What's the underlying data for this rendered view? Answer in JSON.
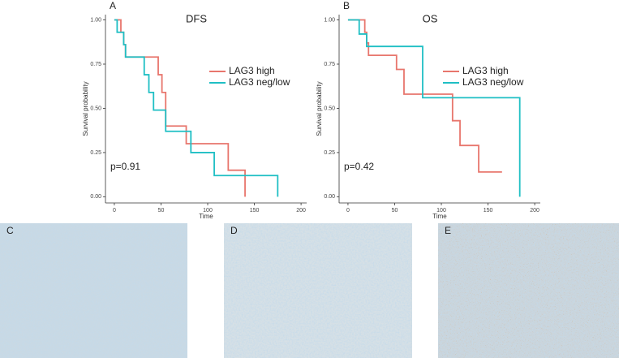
{
  "chart_data": [
    {
      "type": "step",
      "panel": "A",
      "title": "DFS",
      "x_label": "Time",
      "y_label": "Survival probability",
      "annotation": "p=0.91",
      "xlim": [
        -9.5,
        206
      ],
      "ylim": [
        -0.035,
        1.03
      ],
      "xticks": [
        0,
        50,
        100,
        150,
        200
      ],
      "yticks": [
        {
          "value": 0,
          "label": "0.00"
        },
        {
          "value": 0.25,
          "label": "0.25"
        },
        {
          "value": 0.5,
          "label": "0.50"
        },
        {
          "value": 0.75,
          "label": "0.75"
        },
        {
          "value": 1,
          "label": "1.00"
        }
      ],
      "series": [
        {
          "name": "LAG3 high",
          "color": "#e8766d",
          "x": [
            0,
            7,
            10,
            12,
            47,
            51,
            55,
            77,
            122,
            140
          ],
          "values": [
            1,
            0.93,
            0.86,
            0.79,
            0.69,
            0.59,
            0.4,
            0.3,
            0.15,
            0
          ]
        },
        {
          "name": "LAG3 neg/low",
          "color": "#1fbfc4",
          "x": [
            0,
            3,
            10,
            12,
            32,
            37,
            42,
            55,
            82,
            107,
            175
          ],
          "values": [
            1,
            0.93,
            0.86,
            0.79,
            0.69,
            0.59,
            0.49,
            0.37,
            0.25,
            0.12,
            0
          ]
        }
      ]
    },
    {
      "type": "step",
      "panel": "B",
      "title": "OS",
      "x_label": "Time",
      "y_label": "Survival probability",
      "annotation": "p=0.42",
      "xlim": [
        -9.5,
        206
      ],
      "ylim": [
        -0.035,
        1.03
      ],
      "xticks": [
        0,
        50,
        100,
        150,
        200
      ],
      "yticks": [
        {
          "value": 0,
          "label": "0.00"
        },
        {
          "value": 0.25,
          "label": "0.25"
        },
        {
          "value": 0.5,
          "label": "0.50"
        },
        {
          "value": 0.75,
          "label": "0.75"
        },
        {
          "value": 1,
          "label": "1.00"
        }
      ],
      "series": [
        {
          "name": "LAG3 high",
          "color": "#e8766d",
          "x": [
            0,
            18,
            20,
            22,
            52,
            60,
            112,
            120,
            140,
            165
          ],
          "values": [
            1,
            0.93,
            0.87,
            0.8,
            0.72,
            0.58,
            0.43,
            0.29,
            0.14,
            0.14
          ]
        },
        {
          "name": "LAG3 neg/low",
          "color": "#1fbfc4",
          "x": [
            0,
            12,
            20,
            80,
            184
          ],
          "values": [
            1,
            0.92,
            0.85,
            0.56,
            0
          ]
        }
      ]
    }
  ],
  "panels": [
    {
      "label": "C"
    },
    {
      "label": "D"
    },
    {
      "label": "E"
    }
  ]
}
